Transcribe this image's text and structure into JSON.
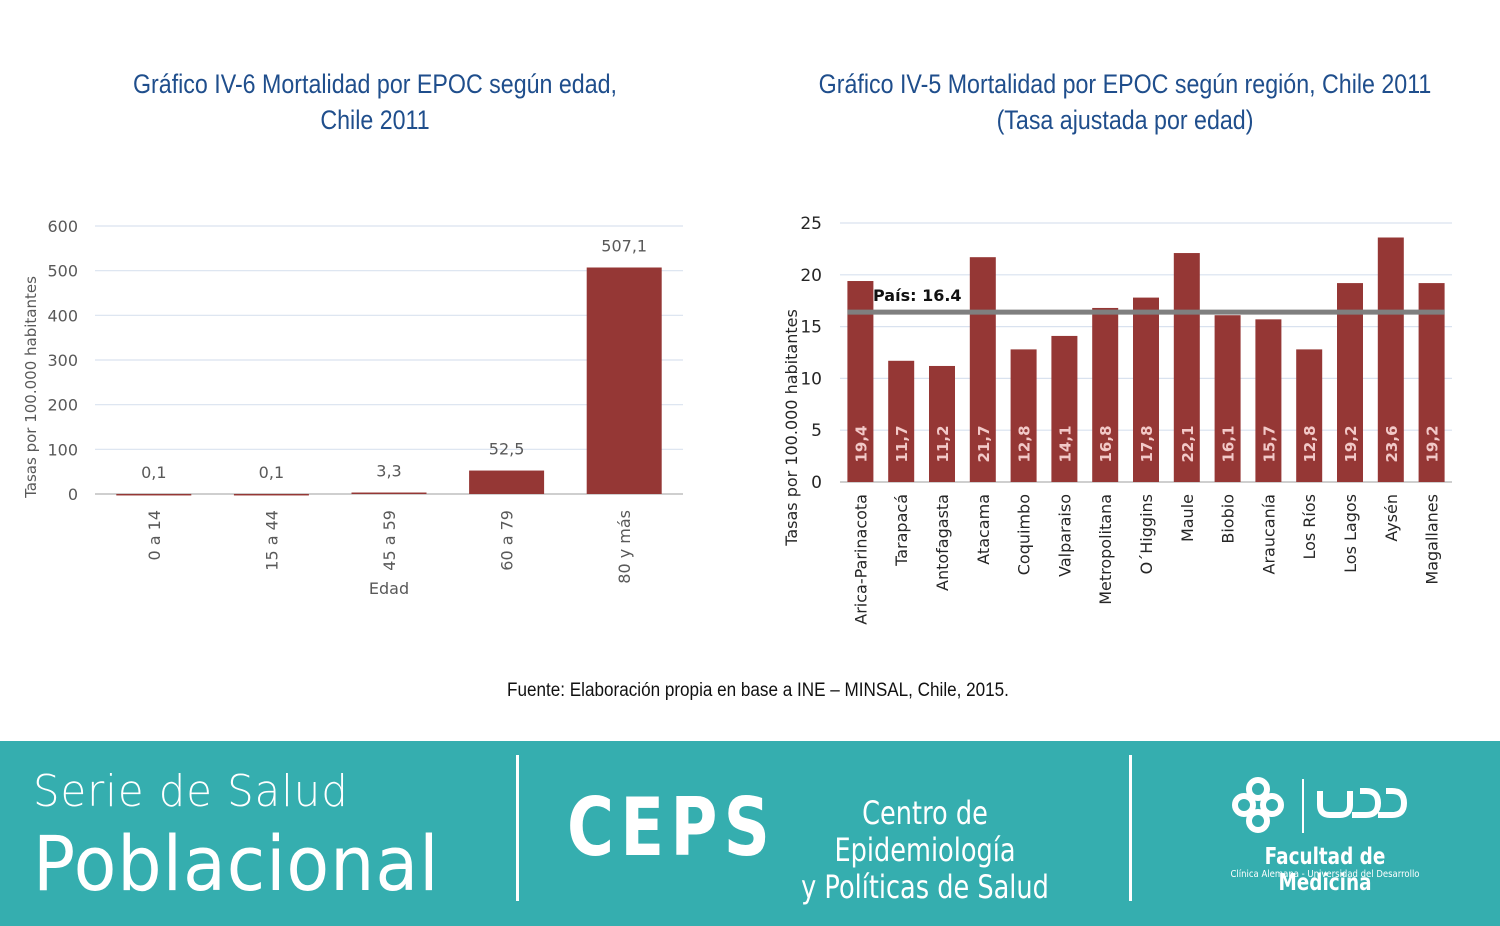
{
  "chart_data": [
    {
      "type": "bar",
      "title": "Gráfico IV-6 Mortalidad por EPOC según edad, Chile 2011",
      "title_lines": [
        "Gráfico IV-6 Mortalidad por EPOC según edad,",
        "Chile 2011"
      ],
      "categories": [
        "0 a 14",
        "15 a 44",
        "45 a 59",
        "60 a 79",
        "80 y más"
      ],
      "values": [
        0.1,
        0.1,
        3.3,
        52.5,
        507.1
      ],
      "value_labels": [
        "0,1",
        "0,1",
        "3,3",
        "52,5",
        "507,1"
      ],
      "xlabel": "Edad",
      "ylabel": "Tasas por 100.000 habitantes",
      "ylim": [
        0,
        600
      ],
      "yticks": [
        0,
        100,
        200,
        300,
        400,
        500,
        600
      ],
      "grid": true,
      "bar_color": "#953735"
    },
    {
      "type": "bar",
      "title": "Gráfico IV-5 Mortalidad por EPOC según región, Chile 2011 (Tasa ajustada por edad)",
      "title_lines": [
        "Gráfico IV-5 Mortalidad por EPOC según región, Chile 2011",
        "(Tasa ajustada por edad)"
      ],
      "categories": [
        "Arica-Parinacota",
        "Tarapacá",
        "Antofagasta",
        "Atacama",
        "Coquimbo",
        "Valparaiso",
        "Metropolitana",
        "O´Higgins",
        "Maule",
        "Biobio",
        "Araucanía",
        "Los Ríos",
        "Los Lagos",
        "Aysén",
        "Magallanes"
      ],
      "values": [
        19.4,
        11.7,
        11.2,
        21.7,
        12.8,
        14.1,
        16.8,
        17.8,
        22.1,
        16.1,
        15.7,
        12.8,
        19.2,
        23.6,
        19.2
      ],
      "value_labels": [
        "19,4",
        "11,7",
        "11,2",
        "21,7",
        "12,8",
        "14,1",
        "16,8",
        "17,8",
        "22,1",
        "16,1",
        "15,7",
        "12,8",
        "19,2",
        "23,6",
        "19,2"
      ],
      "ylabel": "Tasas por 100.000 habitantes",
      "ylim": [
        0,
        25
      ],
      "yticks": [
        0,
        5,
        10,
        15,
        20,
        25
      ],
      "grid": true,
      "reference_line": {
        "value": 16.4,
        "label": "País: 16.4",
        "color": "#7f7f7f"
      },
      "bar_color": "#953735"
    }
  ],
  "source_note": "Fuente: Elaboración propia en base a INE – MINSAL, Chile, 2015.",
  "footer": {
    "background": "#35aeaf",
    "series_line1": "Serie de Salud",
    "series_line2": "Poblacional",
    "ceps": "CEPS",
    "centro_line1": "Centro de Epidemiología",
    "centro_line2": "y Políticas de Salud",
    "faculty": "Facultad de Medicina",
    "faculty_sub": "Clínica Alemana - Universidad del Desarrollo",
    "logo_icon": "clinica-alemana-logo-icon",
    "udd_icon": "udd-logo-icon"
  }
}
